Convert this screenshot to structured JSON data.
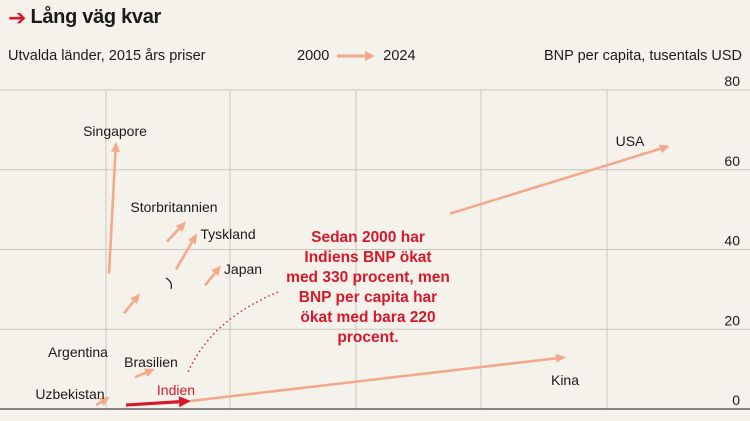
{
  "header": {
    "title": "Lång väg kvar",
    "subtitle": "Utvalda länder, 2015 års priser",
    "unit": "BNP per capita, tusentals USD"
  },
  "legend": {
    "start": "2000",
    "end": "2024"
  },
  "annotation": [
    "Sedan 2000 har",
    "Indiens BNP ökat",
    "med 330 procent, men",
    "BNP per capita har",
    "ökat med bara 220",
    "procent."
  ],
  "colors": {
    "arrow": "#f4a98a",
    "highlight": "#d7182a",
    "grid": "#c9c5bd",
    "background": "#f5f2ec"
  },
  "chart_data": {
    "type": "arrow",
    "y_axis": {
      "range": [
        0,
        80
      ],
      "ticks": [
        0,
        20,
        40,
        60,
        80
      ],
      "position": "right"
    },
    "series": [
      {
        "name": "Singapore",
        "start": 34,
        "end": 67
      },
      {
        "name": "USA",
        "start": 49,
        "end": 66
      },
      {
        "name": "Storbritannien",
        "start": 42,
        "end": 47
      },
      {
        "name": "Tyskland",
        "start": 35,
        "end": 44
      },
      {
        "name": "Japan",
        "start": 31,
        "end": 36
      },
      {
        "name": "Argentina",
        "start": 24,
        "end": 29
      },
      {
        "name": "Brasilien",
        "start": 8,
        "end": 10
      },
      {
        "name": "Kina",
        "start": 2,
        "end": 13
      },
      {
        "name": "Uzbekistan",
        "start": 1,
        "end": 3
      },
      {
        "name": "Indien",
        "start": 1,
        "end": 2
      }
    ]
  }
}
